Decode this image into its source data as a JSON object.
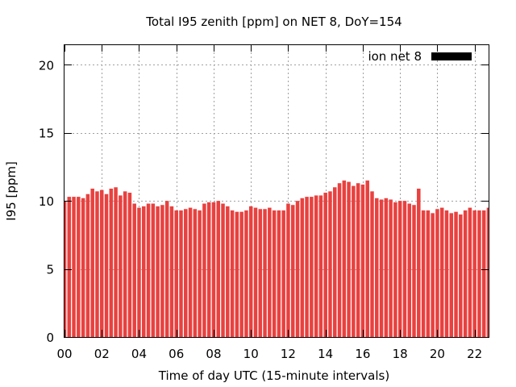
{
  "chart_data": {
    "type": "bar",
    "title": "Total I95 zenith [ppm] on NET 8, DoY=154",
    "xlabel": "Time of day UTC (15-minute intervals)",
    "ylabel": "I95 [ppm]",
    "xlim": [
      0,
      22.75
    ],
    "ylim": [
      0,
      21.5
    ],
    "xticks": [
      "00",
      "02",
      "04",
      "06",
      "08",
      "10",
      "12",
      "14",
      "16",
      "18",
      "20",
      "22"
    ],
    "yticks": [
      "0",
      "5",
      "10",
      "15",
      "20"
    ],
    "grid": true,
    "legend_position": "top-right",
    "series": [
      {
        "name": "ion net 8",
        "color": "#e8413f",
        "values": [
          10.0,
          10.3,
          10.3,
          10.3,
          10.2,
          10.5,
          10.9,
          10.7,
          10.8,
          10.5,
          10.9,
          11.0,
          10.4,
          10.7,
          10.6,
          9.8,
          9.5,
          9.6,
          9.8,
          9.8,
          9.6,
          9.7,
          10.0,
          9.6,
          9.3,
          9.3,
          9.4,
          9.5,
          9.4,
          9.3,
          9.8,
          9.9,
          9.9,
          10.0,
          9.8,
          9.6,
          9.3,
          9.2,
          9.2,
          9.3,
          9.6,
          9.5,
          9.4,
          9.4,
          9.5,
          9.3,
          9.3,
          9.3,
          9.8,
          9.7,
          10.0,
          10.2,
          10.3,
          10.3,
          10.4,
          10.4,
          10.6,
          10.7,
          11.0,
          11.3,
          11.5,
          11.4,
          11.1,
          11.3,
          11.2,
          11.5,
          10.7,
          10.2,
          10.1,
          10.2,
          10.1,
          9.9,
          10.0,
          10.0,
          9.8,
          9.7,
          10.9,
          9.3,
          9.3,
          9.1,
          9.4,
          9.5,
          9.3,
          9.1,
          9.2,
          9.0,
          9.3,
          9.5,
          9.3,
          9.3,
          9.3,
          9.5
        ]
      }
    ]
  }
}
